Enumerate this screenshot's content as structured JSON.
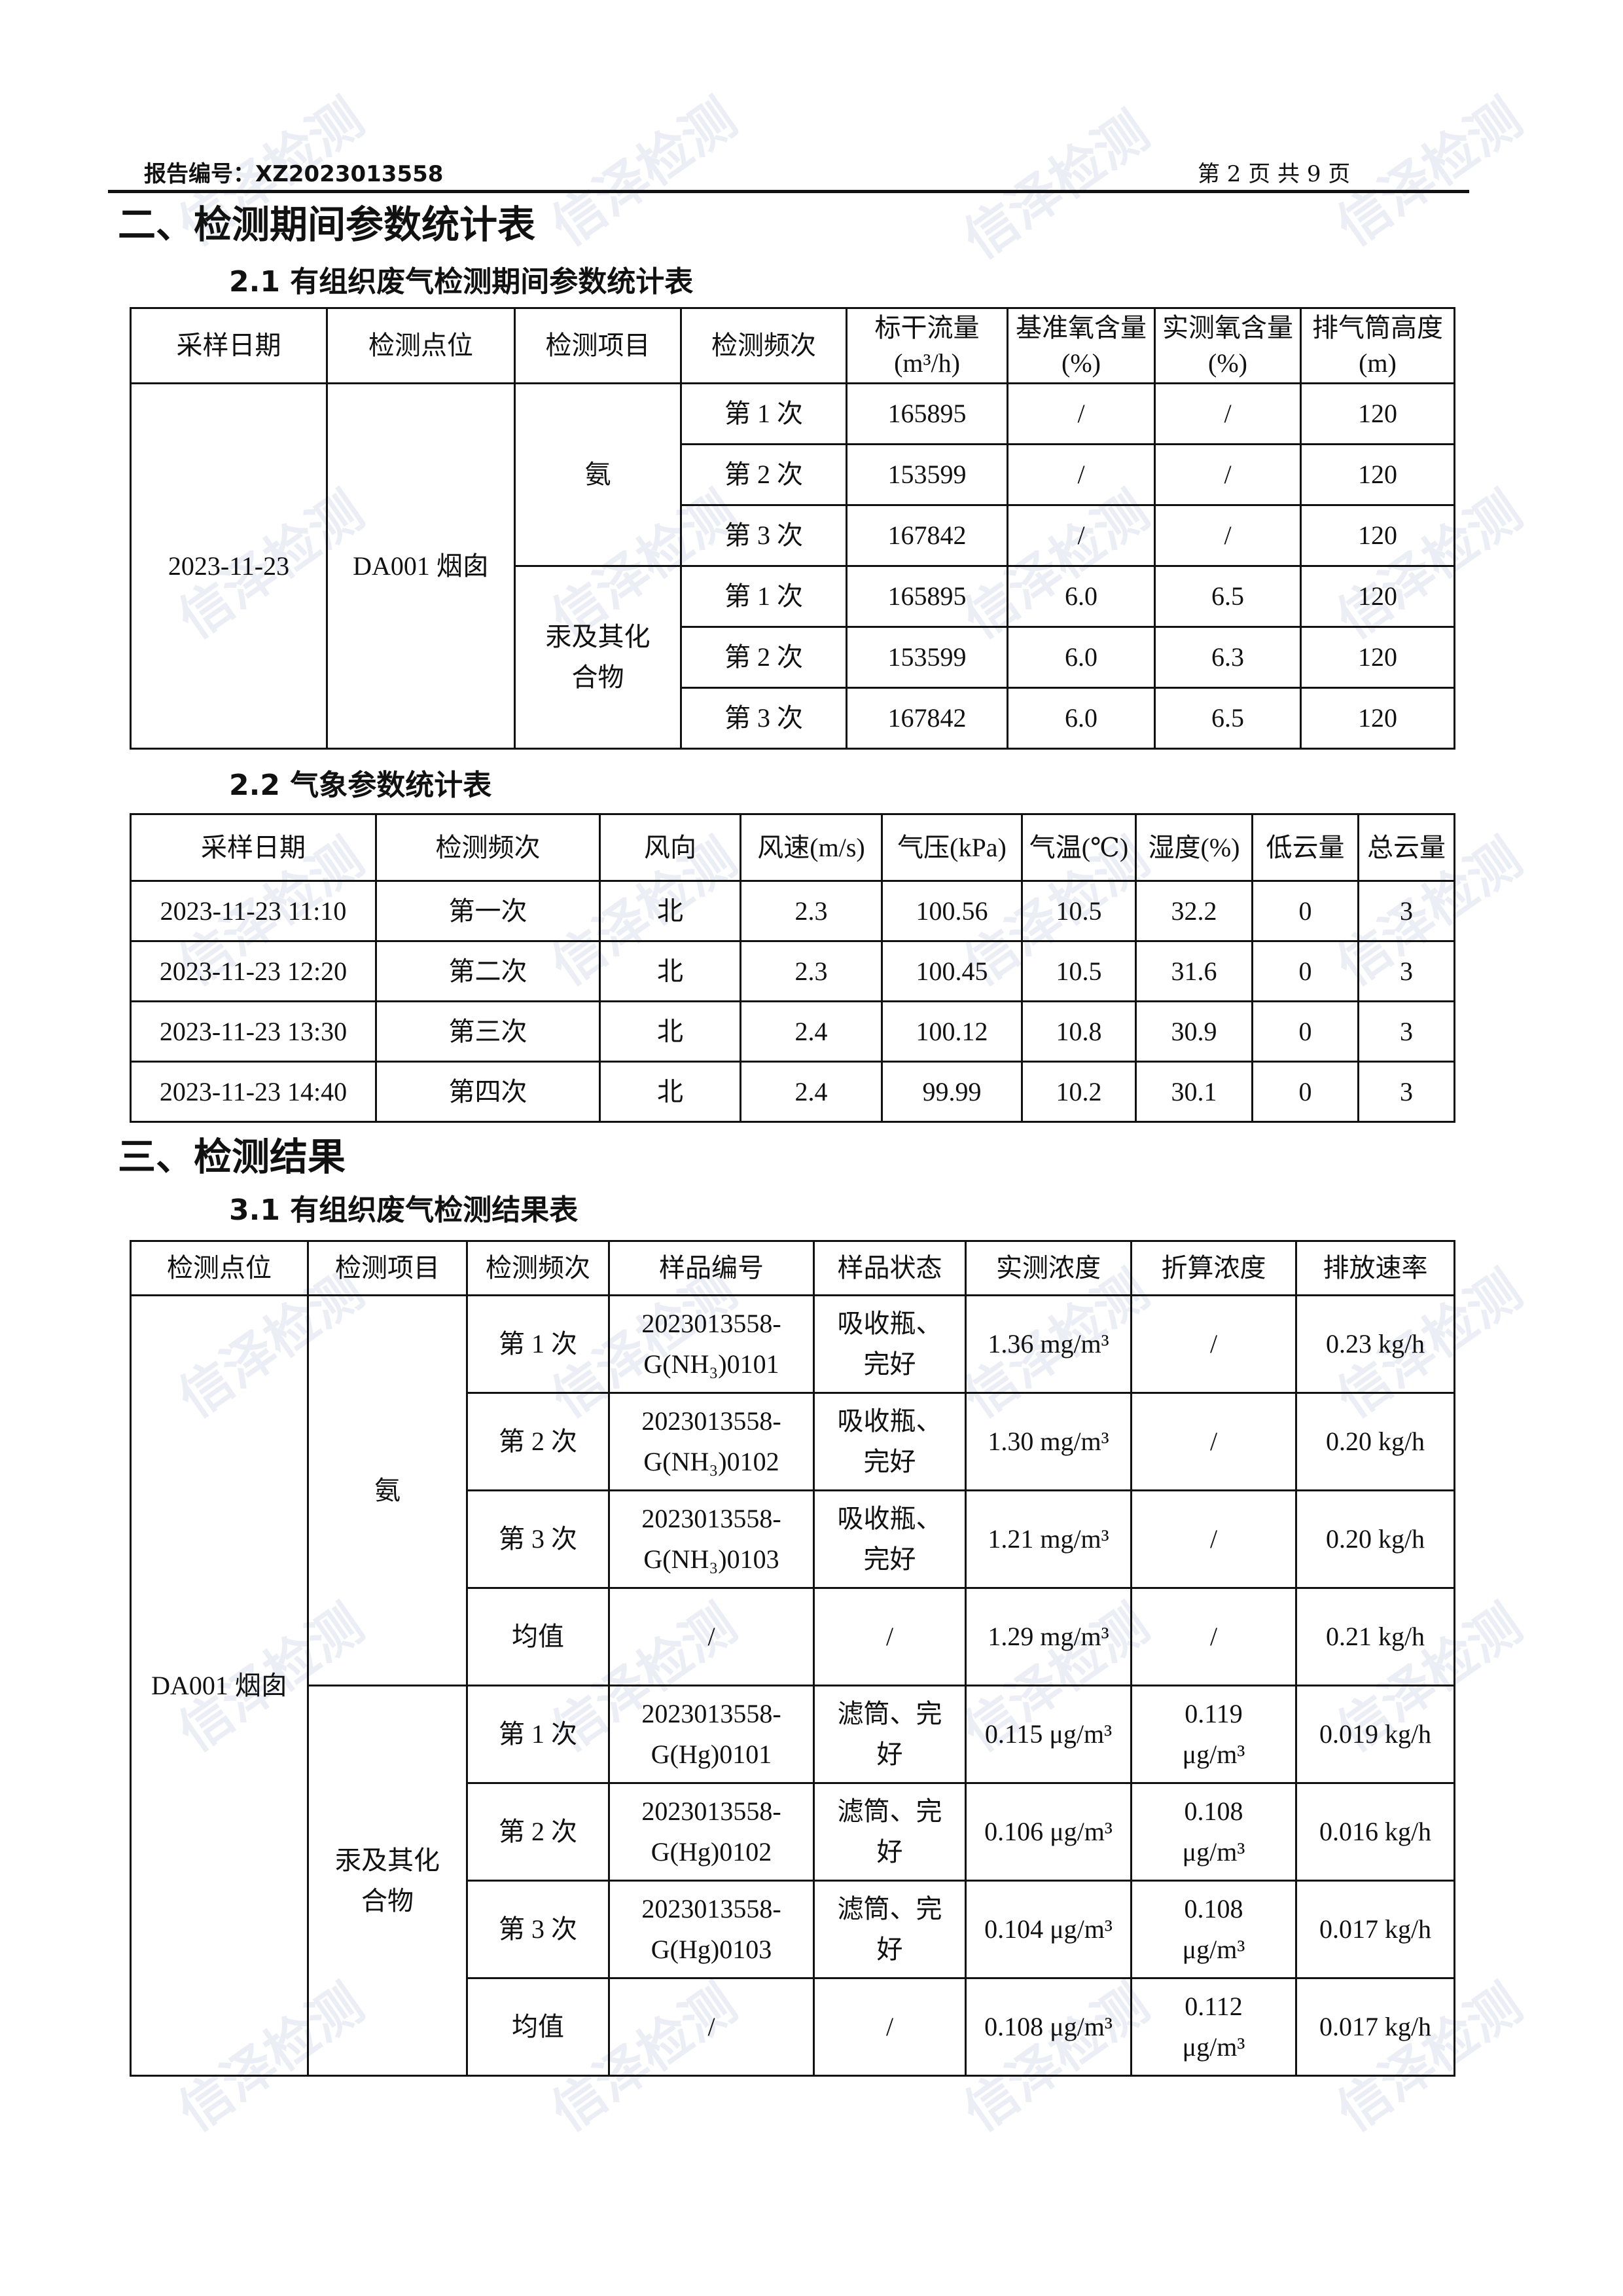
{
  "header": {
    "report_no": "报告编号：XZ2023013558",
    "page": "第 2 页 共 9 页"
  },
  "watermark": "信泽检测",
  "section2": {
    "title": "二、检测期间参数统计表",
    "t1": {
      "title": "2.1 有组织废气检测期间参数统计表",
      "headers": [
        "采样日期",
        "检测点位",
        "检测项目",
        "检测频次",
        "标干流量(m³/h)",
        "基准氧含量(%)",
        "实测氧含量(%)",
        "排气筒高度(m)"
      ],
      "date": "2023-11-23",
      "location": "DA001 烟囱",
      "groups": [
        {
          "item": "氨",
          "rows": [
            [
              "第 1 次",
              "165895",
              "/",
              "/",
              "120"
            ],
            [
              "第 2 次",
              "153599",
              "/",
              "/",
              "120"
            ],
            [
              "第 3 次",
              "167842",
              "/",
              "/",
              "120"
            ]
          ]
        },
        {
          "item": "汞及其化合物",
          "rows": [
            [
              "第 1 次",
              "165895",
              "6.0",
              "6.5",
              "120"
            ],
            [
              "第 2 次",
              "153599",
              "6.0",
              "6.3",
              "120"
            ],
            [
              "第 3 次",
              "167842",
              "6.0",
              "6.5",
              "120"
            ]
          ]
        }
      ]
    },
    "t2": {
      "title": "2.2 气象参数统计表",
      "headers": [
        "采样日期",
        "检测频次",
        "风向",
        "风速(m/s)",
        "气压(kPa)",
        "气温(℃)",
        "湿度(%)",
        "低云量",
        "总云量"
      ],
      "rows": [
        [
          "2023-11-23 11:10",
          "第一次",
          "北",
          "2.3",
          "100.56",
          "10.5",
          "32.2",
          "0",
          "3"
        ],
        [
          "2023-11-23 12:20",
          "第二次",
          "北",
          "2.3",
          "100.45",
          "10.5",
          "31.6",
          "0",
          "3"
        ],
        [
          "2023-11-23 13:30",
          "第三次",
          "北",
          "2.4",
          "100.12",
          "10.8",
          "30.9",
          "0",
          "3"
        ],
        [
          "2023-11-23 14:40",
          "第四次",
          "北",
          "2.4",
          "99.99",
          "10.2",
          "30.1",
          "0",
          "3"
        ]
      ]
    }
  },
  "section3": {
    "title": "三、检测结果",
    "t3": {
      "title": "3.1 有组织废气检测结果表",
      "headers": [
        "检测点位",
        "检测项目",
        "检测频次",
        "样品编号",
        "样品状态",
        "实测浓度",
        "折算浓度",
        "排放速率"
      ],
      "location": "DA001 烟囱",
      "groups": [
        {
          "item": "氨",
          "rows": [
            [
              "第 1 次",
              "2023013558-\nG(NH₃)0101",
              "吸收瓶、\n完好",
              "1.36 mg/m³",
              "/",
              "0.23 kg/h"
            ],
            [
              "第 2 次",
              "2023013558-\nG(NH₃)0102",
              "吸收瓶、\n完好",
              "1.30 mg/m³",
              "/",
              "0.20 kg/h"
            ],
            [
              "第 3 次",
              "2023013558-\nG(NH₃)0103",
              "吸收瓶、\n完好",
              "1.21 mg/m³",
              "/",
              "0.20 kg/h"
            ],
            [
              "均值",
              "/",
              "/",
              "1.29 mg/m³",
              "/",
              "0.21 kg/h"
            ]
          ]
        },
        {
          "item": "汞及其化合物",
          "rows": [
            [
              "第 1 次",
              "2023013558-\nG(Hg)0101",
              "滤筒、完\n好",
              "0.115 μg/m³",
              "0.119\nμg/m³",
              "0.019 kg/h"
            ],
            [
              "第 2 次",
              "2023013558-\nG(Hg)0102",
              "滤筒、完\n好",
              "0.106 μg/m³",
              "0.108\nμg/m³",
              "0.016 kg/h"
            ],
            [
              "第 3 次",
              "2023013558-\nG(Hg)0103",
              "滤筒、完\n好",
              "0.104 μg/m³",
              "0.108\nμg/m³",
              "0.017 kg/h"
            ],
            [
              "均值",
              "/",
              "/",
              "0.108 μg/m³",
              "0.112\nμg/m³",
              "0.017 kg/h"
            ]
          ]
        }
      ]
    }
  }
}
